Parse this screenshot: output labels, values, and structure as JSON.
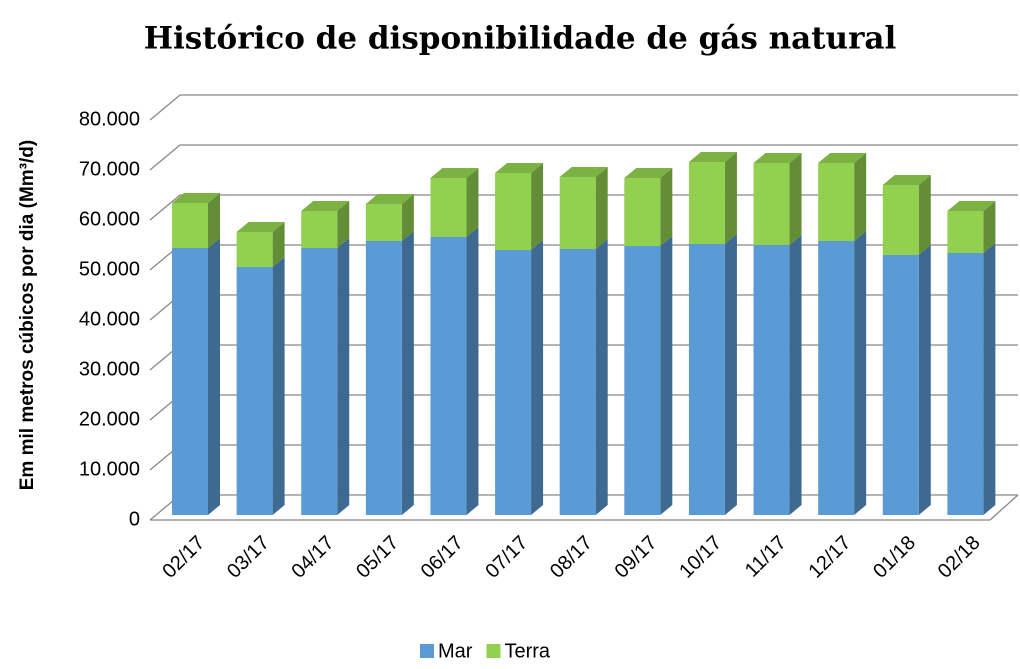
{
  "chart_data": {
    "type": "bar3d_stacked",
    "title": "Histórico de disponibilidade de gás natural",
    "y_label": "Em mil metros cúbicos por dia (Mm³/d)",
    "categories": [
      "02/17",
      "03/17",
      "04/17",
      "05/17",
      "06/17",
      "07/17",
      "08/17",
      "09/17",
      "10/17",
      "11/17",
      "12/17",
      "01/18",
      "02/18"
    ],
    "series": [
      {
        "name": "Mar",
        "color": "#5b9bd5",
        "values": [
          53400,
          49600,
          53400,
          54800,
          55600,
          53000,
          53200,
          53800,
          54200,
          54000,
          54800,
          52000,
          52400
        ]
      },
      {
        "name": "Terra",
        "color": "#92d050",
        "values": [
          9000,
          7000,
          7400,
          7400,
          11800,
          15400,
          14400,
          13600,
          16400,
          16400,
          15600,
          14000,
          8400
        ]
      }
    ],
    "ylim": [
      0,
      80000
    ],
    "yticks": [
      0,
      {
        "value": 10000,
        "label": "10.000"
      },
      {
        "value": 20000,
        "label": "20.000"
      },
      {
        "value": 30000,
        "label": "30.000"
      },
      {
        "value": 40000,
        "label": "40.000"
      },
      {
        "value": 50000,
        "label": "50.000"
      },
      {
        "value": 60000,
        "label": "60.000"
      },
      {
        "value": 70000,
        "label": "70.000"
      },
      {
        "value": 80000,
        "label": "80.000"
      }
    ],
    "grid": true,
    "legend": "bottom"
  }
}
